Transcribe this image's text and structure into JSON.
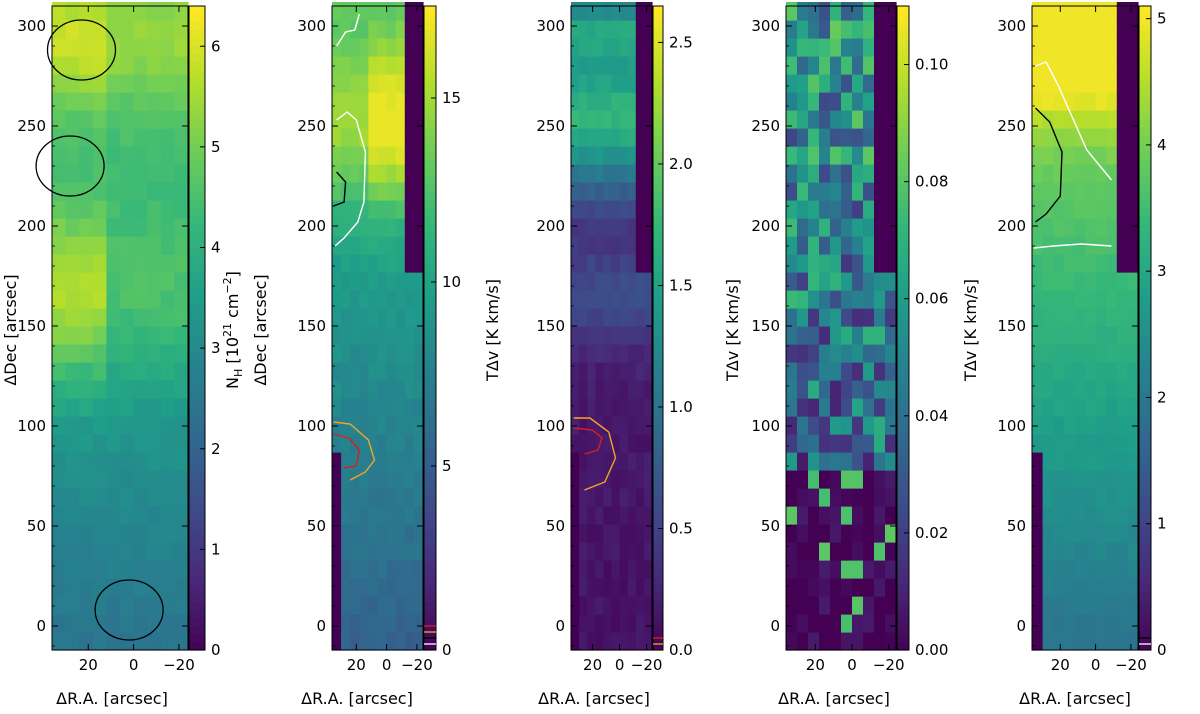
{
  "chart_data": [
    {
      "type": "heatmap",
      "panel": 1,
      "xlabel": "ΔR.A. [arcsec]",
      "ylabel": "ΔDec [arcsec]",
      "colorbar_label": "N_H [10^21 cm^-2]",
      "colorbar_label_parts": {
        "main": "N",
        "sub": "H",
        "bracket_open": " [10",
        "sup1": "21",
        "unit": " cm",
        "sup2": "−2",
        "bracket_close": "]"
      },
      "x_ticks": [
        "20",
        "0",
        "−20"
      ],
      "y_ticks": [
        "0",
        "50",
        "100",
        "150",
        "200",
        "250",
        "300"
      ],
      "colorbar_ticks": [
        "0",
        "1",
        "2",
        "3",
        "4",
        "5",
        "6"
      ],
      "colorbar_range": [
        0,
        6.4
      ],
      "xlim": [
        36,
        -24
      ],
      "ylim": [
        -12,
        310
      ],
      "colormap": "viridis",
      "circles": [
        {
          "ra": 23,
          "dec": 288,
          "radius": 15,
          "color": "#000000"
        },
        {
          "ra": 28,
          "dec": 230,
          "radius": 15,
          "color": "#000000"
        },
        {
          "ra": 2,
          "dec": 8,
          "radius": 15,
          "color": "#000000"
        }
      ]
    },
    {
      "type": "heatmap",
      "panel": 2,
      "xlabel": "ΔR.A. [arcsec]",
      "ylabel": "ΔDec [arcsec]",
      "colorbar_label": "TΔv [K km/s]",
      "x_ticks": [
        "20",
        "0",
        "−20"
      ],
      "y_ticks": [
        "0",
        "50",
        "100",
        "150",
        "200",
        "250",
        "300"
      ],
      "colorbar_ticks": [
        "0",
        "5",
        "10",
        "15"
      ],
      "colorbar_range": [
        0,
        17.5
      ],
      "xlim": [
        36,
        -24
      ],
      "ylim": [
        -12,
        310
      ],
      "colormap": "viridis",
      "contours": [
        {
          "color": "#ffffff",
          "points": [
            [
              33,
              290
            ],
            [
              27,
              297
            ],
            [
              21,
              298
            ],
            [
              18,
              306
            ]
          ]
        },
        {
          "color": "#ffffff",
          "points": [
            [
              33,
              253
            ],
            [
              26,
              257
            ],
            [
              20,
              253
            ],
            [
              14,
              237
            ],
            [
              15,
              212
            ],
            [
              19,
              202
            ],
            [
              28,
              194
            ],
            [
              34,
              190
            ]
          ]
        },
        {
          "color": "#000000",
          "points": [
            [
              33,
              227
            ],
            [
              27,
              222
            ],
            [
              28,
              212
            ],
            [
              35,
              210
            ]
          ]
        },
        {
          "color": "#f5a623",
          "points": [
            [
              35,
              102
            ],
            [
              24,
              101
            ],
            [
              12,
              93
            ],
            [
              8,
              83
            ],
            [
              14,
              77
            ],
            [
              24,
              73
            ]
          ]
        },
        {
          "color": "#d62020",
          "points": [
            [
              35,
              96
            ],
            [
              25,
              94
            ],
            [
              18,
              88
            ],
            [
              20,
              80
            ],
            [
              28,
              79
            ]
          ]
        }
      ]
    },
    {
      "type": "heatmap",
      "panel": 3,
      "xlabel": "ΔR.A. [arcsec]",
      "ylabel": "",
      "colorbar_label": "TΔv [K km/s]",
      "x_ticks": [
        "20",
        "0",
        "−20"
      ],
      "y_ticks": [
        "0",
        "50",
        "100",
        "150",
        "200",
        "250",
        "300"
      ],
      "colorbar_ticks": [
        "0.0",
        "0.5",
        "1.0",
        "1.5",
        "2.0",
        "2.5"
      ],
      "colorbar_range": [
        0,
        2.65
      ],
      "xlim": [
        36,
        -24
      ],
      "ylim": [
        -12,
        310
      ],
      "colormap": "viridis",
      "contours": [
        {
          "color": "#f5a623",
          "points": [
            [
              34,
              104
            ],
            [
              22,
              104
            ],
            [
              8,
              97
            ],
            [
              3,
              84
            ],
            [
              11,
              72
            ],
            [
              26,
              68
            ]
          ]
        },
        {
          "color": "#d62020",
          "points": [
            [
              34,
              99
            ],
            [
              20,
              98
            ],
            [
              13,
              94
            ],
            [
              16,
              88
            ],
            [
              26,
              86
            ]
          ]
        }
      ]
    },
    {
      "type": "heatmap",
      "panel": 4,
      "xlabel": "ΔR.A. [arcsec]",
      "ylabel": "",
      "colorbar_label": "TΔv [K km/s]",
      "x_ticks": [
        "20",
        "0",
        "−20"
      ],
      "y_ticks": [
        "0",
        "50",
        "100",
        "150",
        "200",
        "250",
        "300"
      ],
      "colorbar_ticks": [
        "0.00",
        "0.02",
        "0.04",
        "0.06",
        "0.08",
        "0.10"
      ],
      "colorbar_range": [
        0,
        0.11
      ],
      "xlim": [
        36,
        -24
      ],
      "ylim": [
        -12,
        310
      ],
      "colormap": "viridis"
    },
    {
      "type": "heatmap",
      "panel": 5,
      "xlabel": "ΔR.A. [arcsec]",
      "ylabel": "",
      "colorbar_label": "",
      "x_ticks": [
        "20",
        "0",
        "−20"
      ],
      "y_ticks": [
        "0",
        "50",
        "100",
        "150",
        "200",
        "250",
        "300"
      ],
      "colorbar_ticks": [
        "0",
        "1",
        "2",
        "3",
        "4",
        "5"
      ],
      "colorbar_range": [
        0,
        5.1
      ],
      "xlim": [
        36,
        -24
      ],
      "ylim": [
        -12,
        310
      ],
      "colormap": "viridis",
      "contours": [
        {
          "color": "#ffffff",
          "points": [
            [
              34,
              280
            ],
            [
              28,
              282
            ],
            [
              21,
              270
            ],
            [
              12,
              252
            ],
            [
              5,
              238
            ],
            [
              -9,
              223
            ]
          ]
        },
        {
          "color": "#000000",
          "points": [
            [
              34,
              259
            ],
            [
              26,
              252
            ],
            [
              19,
              237
            ],
            [
              20,
              215
            ],
            [
              28,
              206
            ],
            [
              34,
              202
            ]
          ]
        },
        {
          "color": "#ffffff",
          "points": [
            [
              35,
              189
            ],
            [
              24,
              190
            ],
            [
              8,
              191
            ],
            [
              -9,
              190
            ]
          ]
        }
      ]
    }
  ]
}
